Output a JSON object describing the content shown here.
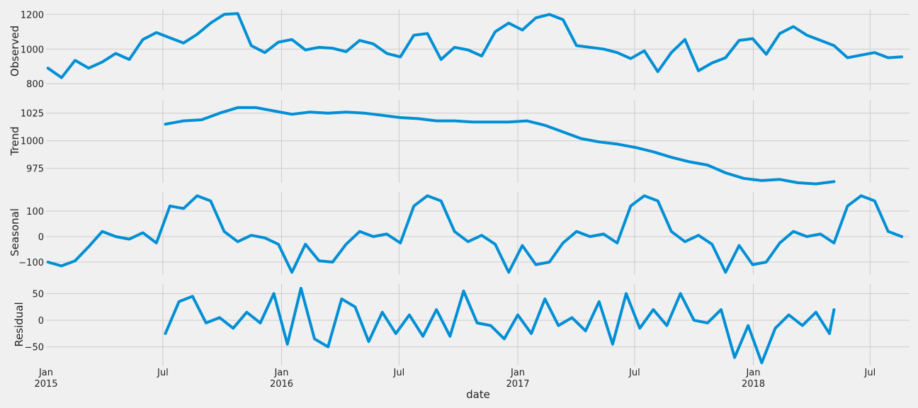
{
  "chart_data": {
    "type": "line",
    "title": "",
    "xlabel": "date",
    "x_ticks": [
      "Jan 2015",
      "Jul",
      "Jan 2016",
      "Jul",
      "Jan 2017",
      "Jul",
      "Jan 2018",
      "Jul"
    ],
    "x_range": [
      "2015-01-01",
      "2018-08-31"
    ],
    "grid": true,
    "colors": {
      "line": "#008fd5",
      "background": "#f0f0f0",
      "grid": "#cbcbcb"
    },
    "panels": [
      {
        "ylabel": "Observed",
        "ylim": [
          760,
          1230
        ],
        "yticks": [
          800,
          1000,
          1200
        ],
        "series": [
          {
            "x": [
              "2015-01-04",
              "2015-01-25",
              "2015-02-15",
              "2015-03-08",
              "2015-03-29",
              "2015-04-19",
              "2015-05-10",
              "2015-05-31",
              "2015-06-21",
              "2015-07-12",
              "2015-08-02",
              "2015-08-23",
              "2015-09-13",
              "2015-10-04",
              "2015-10-25",
              "2015-11-15",
              "2015-12-06",
              "2015-12-27",
              "2016-01-17",
              "2016-02-07",
              "2016-02-28",
              "2016-03-20",
              "2016-04-10",
              "2016-05-01",
              "2016-05-22",
              "2016-06-12",
              "2016-07-03",
              "2016-07-24",
              "2016-08-14",
              "2016-09-04",
              "2016-09-25",
              "2016-10-16",
              "2016-11-06",
              "2016-11-27",
              "2016-12-18",
              "2017-01-08",
              "2017-01-29",
              "2017-02-19",
              "2017-03-12",
              "2017-04-02",
              "2017-04-23",
              "2017-05-14",
              "2017-06-04",
              "2017-06-25",
              "2017-07-16",
              "2017-08-06",
              "2017-08-27",
              "2017-09-17",
              "2017-10-08",
              "2017-10-29",
              "2017-11-19",
              "2017-12-10",
              "2017-12-31",
              "2018-01-21",
              "2018-02-11",
              "2018-03-04",
              "2018-03-25",
              "2018-04-15",
              "2018-05-06",
              "2018-05-27",
              "2018-06-17",
              "2018-07-08",
              "2018-07-29",
              "2018-08-19"
            ],
            "values": [
              890,
              835,
              935,
              890,
              925,
              975,
              940,
              1055,
              1095,
              1065,
              1035,
              1085,
              1150,
              1200,
              1205,
              1020,
              980,
              1040,
              1055,
              995,
              1010,
              1005,
              985,
              1050,
              1030,
              975,
              955,
              1080,
              1090,
              940,
              1010,
              995,
              960,
              1100,
              1150,
              1110,
              1180,
              1200,
              1170,
              1020,
              1010,
              1000,
              980,
              945,
              990,
              870,
              980,
              1055,
              875,
              920,
              950,
              1050,
              1060,
              970,
              1090,
              1130,
              1080,
              1050,
              1020,
              950,
              965,
              980,
              950,
              955
            ]
          }
        ]
      },
      {
        "ylabel": "Trend",
        "ylim": [
          962,
          1037
        ],
        "yticks": [
          975,
          1000,
          1025
        ],
        "series": [
          {
            "x": [
              "2015-07-05",
              "2015-08-02",
              "2015-08-30",
              "2015-09-27",
              "2015-10-25",
              "2015-11-22",
              "2015-12-20",
              "2016-01-17",
              "2016-02-14",
              "2016-03-13",
              "2016-04-10",
              "2016-05-08",
              "2016-06-05",
              "2016-07-03",
              "2016-07-31",
              "2016-08-28",
              "2016-09-25",
              "2016-10-23",
              "2016-11-20",
              "2016-12-18",
              "2017-01-15",
              "2017-02-12",
              "2017-03-12",
              "2017-04-09",
              "2017-05-07",
              "2017-06-04",
              "2017-07-02",
              "2017-07-30",
              "2017-08-27",
              "2017-09-24",
              "2017-10-22",
              "2017-11-19",
              "2017-12-17",
              "2018-01-14",
              "2018-02-11",
              "2018-03-11",
              "2018-04-08",
              "2018-05-06"
            ],
            "values": [
              1015,
              1018,
              1019,
              1025,
              1030,
              1030,
              1027,
              1024,
              1026,
              1025,
              1026,
              1025,
              1023,
              1021,
              1020,
              1018,
              1018,
              1017,
              1017,
              1017,
              1018,
              1014,
              1008,
              1002,
              999,
              997,
              994,
              990,
              985,
              981,
              978,
              971,
              966,
              964,
              965,
              962,
              961,
              963
            ]
          }
        ]
      },
      {
        "ylabel": "Seasonal",
        "ylim": [
          -150,
          175
        ],
        "yticks": [
          -100,
          0,
          100
        ],
        "series": [
          {
            "x": [
              "2015-01-04",
              "2015-01-25",
              "2015-02-15",
              "2015-03-08",
              "2015-03-29",
              "2015-04-19",
              "2015-05-10",
              "2015-05-31",
              "2015-06-21",
              "2015-07-12",
              "2015-08-02",
              "2015-08-23",
              "2015-09-13",
              "2015-10-04",
              "2015-10-25",
              "2015-11-15",
              "2015-12-06",
              "2015-12-27",
              "2016-01-17",
              "2016-02-07",
              "2016-02-28",
              "2016-03-20",
              "2016-04-10",
              "2016-05-01",
              "2016-05-22",
              "2016-06-12",
              "2016-07-03",
              "2016-07-24",
              "2016-08-14",
              "2016-09-04",
              "2016-09-25",
              "2016-10-16",
              "2016-11-06",
              "2016-11-27",
              "2016-12-18",
              "2017-01-08",
              "2017-01-29",
              "2017-02-19",
              "2017-03-12",
              "2017-04-02",
              "2017-04-23",
              "2017-05-14",
              "2017-06-04",
              "2017-06-25",
              "2017-07-16",
              "2017-08-06",
              "2017-08-27",
              "2017-09-17",
              "2017-10-08",
              "2017-10-29",
              "2017-11-19",
              "2017-12-10",
              "2017-12-31",
              "2018-01-21",
              "2018-02-11",
              "2018-03-04",
              "2018-03-25",
              "2018-04-15",
              "2018-05-06",
              "2018-05-27",
              "2018-06-17",
              "2018-07-08",
              "2018-07-29",
              "2018-08-19"
            ],
            "values": [
              -100,
              -115,
              -95,
              -40,
              20,
              0,
              -10,
              15,
              -25,
              120,
              110,
              160,
              140,
              20,
              -20,
              5,
              -5,
              -30,
              -140,
              -30,
              -95,
              -100,
              -30,
              20,
              0,
              10,
              -25,
              120,
              160,
              140,
              20,
              -20,
              5,
              -30,
              -140,
              -35,
              -110,
              -100,
              -25,
              20,
              0,
              10,
              -25,
              120,
              160,
              140,
              20,
              -20,
              5,
              -30,
              -140,
              -35,
              -110,
              -100,
              -25,
              20,
              0,
              10,
              -25,
              120,
              160,
              140,
              20,
              0
            ]
          }
        ]
      },
      {
        "ylabel": "Residual",
        "ylim": [
          -85,
          68
        ],
        "yticks": [
          -50,
          0,
          50
        ],
        "series": [
          {
            "x": [
              "2015-07-05",
              "2015-07-26",
              "2015-08-16",
              "2015-09-06",
              "2015-09-27",
              "2015-10-18",
              "2015-11-08",
              "2015-11-29",
              "2015-12-20",
              "2016-01-10",
              "2016-01-31",
              "2016-02-21",
              "2016-03-13",
              "2016-04-03",
              "2016-04-24",
              "2016-05-15",
              "2016-06-05",
              "2016-06-26",
              "2016-07-17",
              "2016-08-07",
              "2016-08-28",
              "2016-09-18",
              "2016-10-09",
              "2016-10-30",
              "2016-11-20",
              "2016-12-11",
              "2017-01-01",
              "2017-01-22",
              "2017-02-12",
              "2017-03-05",
              "2017-03-26",
              "2017-04-16",
              "2017-05-07",
              "2017-05-28",
              "2017-06-18",
              "2017-07-09",
              "2017-07-30",
              "2017-08-20",
              "2017-09-10",
              "2017-10-01",
              "2017-10-22",
              "2017-11-12",
              "2017-12-03",
              "2017-12-24",
              "2018-01-14",
              "2018-02-04",
              "2018-02-25",
              "2018-03-18",
              "2018-04-08",
              "2018-04-29",
              "2018-05-06"
            ],
            "values": [
              -25,
              35,
              45,
              -5,
              5,
              -15,
              15,
              -5,
              50,
              -45,
              60,
              -35,
              -50,
              40,
              25,
              -40,
              15,
              -25,
              10,
              -30,
              20,
              -30,
              55,
              -5,
              -10,
              -35,
              10,
              -25,
              40,
              -10,
              5,
              -20,
              35,
              -45,
              50,
              -15,
              20,
              -10,
              50,
              0,
              -5,
              20,
              -70,
              -10,
              -80,
              -15,
              10,
              -10,
              15,
              -25,
              20
            ]
          }
        ]
      }
    ]
  }
}
